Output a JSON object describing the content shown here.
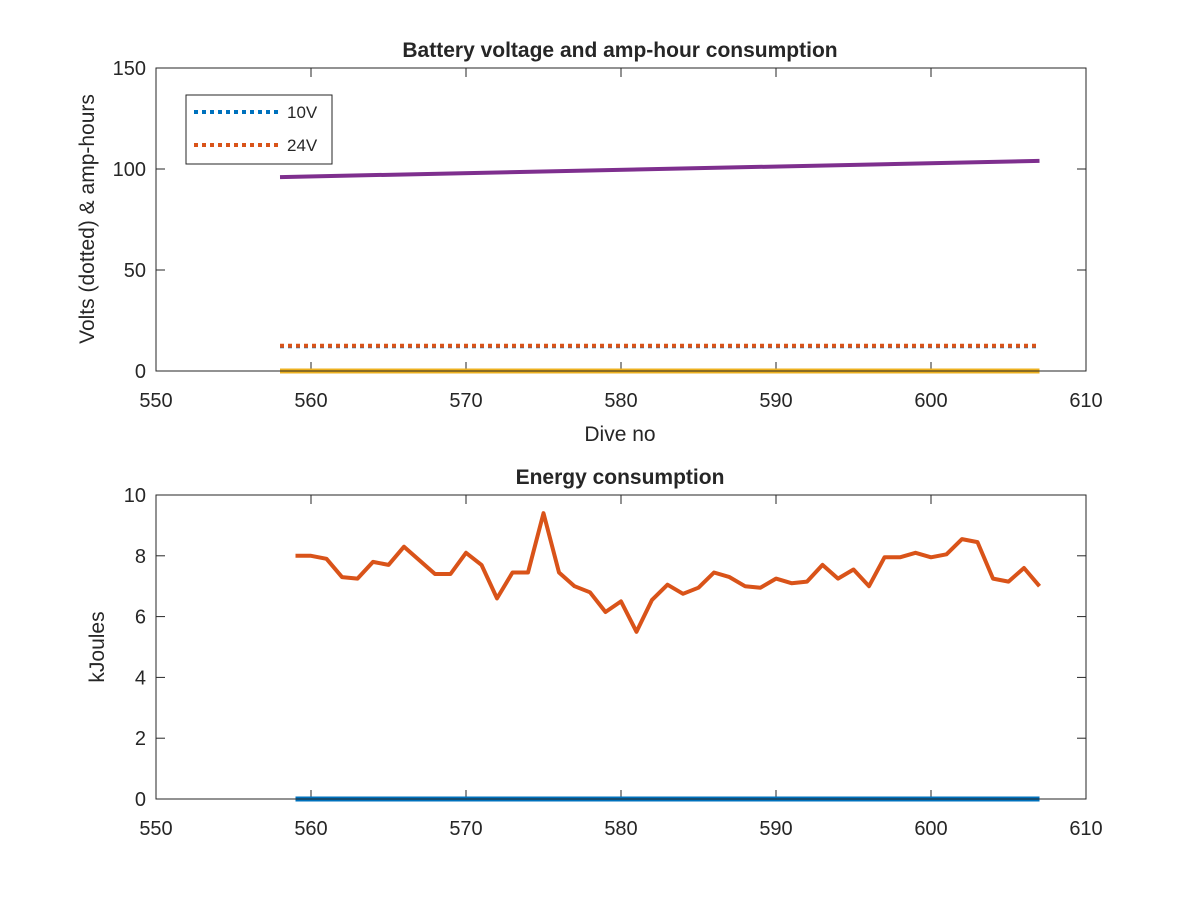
{
  "chart_data": [
    {
      "type": "line",
      "title": "Battery voltage and amp-hour consumption",
      "xlabel": "Dive no",
      "ylabel": "Volts (dotted) & amp-hours",
      "xlim": [
        550,
        610
      ],
      "ylim": [
        0,
        150
      ],
      "xticks": [
        550,
        560,
        570,
        580,
        590,
        600,
        610
      ],
      "yticks": [
        0,
        50,
        100,
        150
      ],
      "grid": false,
      "legend_position": "top-left",
      "series": [
        {
          "name": "10V",
          "style": "dotted",
          "color": "#0072BD",
          "x": [
            558,
            607
          ],
          "y": [
            12.3,
            12.3
          ]
        },
        {
          "name": "24V",
          "style": "dotted",
          "color": "#D95319",
          "x": [
            558,
            607
          ],
          "y": [
            12.5,
            12.5
          ]
        },
        {
          "style": "solid",
          "color": "#7E2F8E",
          "x": [
            558,
            607
          ],
          "y": [
            96,
            104
          ]
        },
        {
          "style": "solid",
          "color": "#EDB120",
          "x": [
            558,
            607
          ],
          "y": [
            0,
            0
          ]
        }
      ]
    },
    {
      "type": "line",
      "title": "Energy consumption",
      "xlabel": "",
      "ylabel": "kJoules",
      "xlim": [
        550,
        610
      ],
      "ylim": [
        0,
        10
      ],
      "xticks": [
        550,
        560,
        570,
        580,
        590,
        600,
        610
      ],
      "yticks": [
        0,
        2,
        4,
        6,
        8,
        10
      ],
      "grid": false,
      "series": [
        {
          "style": "solid",
          "color": "#D95319",
          "x": [
            559,
            560,
            561,
            562,
            563,
            564,
            565,
            566,
            567,
            568,
            569,
            570,
            571,
            572,
            573,
            574,
            575,
            576,
            577,
            578,
            579,
            580,
            581,
            582,
            583,
            584,
            585,
            586,
            587,
            588,
            589,
            590,
            591,
            592,
            593,
            594,
            595,
            596,
            597,
            598,
            599,
            600,
            601,
            602,
            603,
            604,
            605,
            606,
            607
          ],
          "y": [
            8.0,
            8.0,
            7.9,
            7.3,
            7.25,
            7.8,
            7.7,
            8.3,
            7.85,
            7.4,
            7.4,
            8.1,
            7.7,
            6.6,
            7.45,
            7.45,
            9.4,
            7.45,
            7.0,
            6.8,
            6.15,
            6.5,
            5.5,
            6.55,
            7.05,
            6.75,
            6.95,
            7.45,
            7.3,
            7.0,
            6.95,
            7.25,
            7.1,
            7.15,
            7.7,
            7.25,
            7.55,
            7.0,
            7.95,
            7.95,
            8.1,
            7.95,
            8.05,
            8.55,
            8.45,
            7.25,
            7.15,
            7.6,
            7.0
          ]
        },
        {
          "style": "solid",
          "color": "#0072BD",
          "x": [
            559,
            607
          ],
          "y": [
            0,
            0
          ]
        }
      ]
    }
  ]
}
